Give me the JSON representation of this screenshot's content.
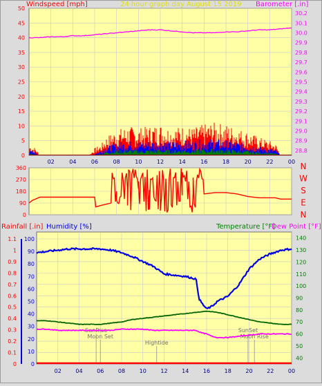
{
  "colors": {
    "plot_bg": "#ffffa6",
    "frame_bg": "#dcdcdc",
    "grid": "#c8c8c8",
    "wind": "#ff0000",
    "gust": "#0000ff",
    "avg": "#008000",
    "baro": "#ff00ff",
    "dir": "#ff0000",
    "humidity": "#0000e0",
    "temperature": "#006400",
    "dewpoint": "#ff00ff",
    "rainfall": "#ff0000",
    "axis_left": "#ff0000",
    "axis_right": "#ff00ff",
    "title": "#e0e000",
    "compass": "#ff0000",
    "temp_axis": "#008000",
    "hum_axis": "#0000e0"
  },
  "chart_data": [
    {
      "id": "wind",
      "type": "area",
      "title": "24 hour graph day   August 15 2019",
      "ylabel": "Windspeed [mph]",
      "y2label": "Barometer [.in]",
      "ylim": [
        0,
        50
      ],
      "y2lim": [
        28.75,
        30.25
      ],
      "x_ticks": [
        "02",
        "04",
        "06",
        "08",
        "10",
        "12",
        "14",
        "16",
        "18",
        "20",
        "22",
        "00"
      ],
      "y_ticks": [
        0,
        5,
        10,
        15,
        20,
        25,
        30,
        35,
        40,
        45,
        50
      ],
      "y2_ticks": [
        28.8,
        28.9,
        29.0,
        29.1,
        29.2,
        29.3,
        29.4,
        29.5,
        29.6,
        29.7,
        29.8,
        29.9,
        30.0,
        30.1,
        30.2
      ],
      "barometer": {
        "x": [
          0,
          1,
          2,
          3,
          4,
          5,
          6,
          7,
          8,
          9,
          10,
          11,
          12,
          13,
          14,
          15,
          16,
          17,
          18,
          19,
          20,
          21,
          22,
          23,
          24
        ],
        "values": [
          29.95,
          29.95,
          29.96,
          29.96,
          29.97,
          29.97,
          29.98,
          29.99,
          30.0,
          30.01,
          30.02,
          30.03,
          30.03,
          30.02,
          30.01,
          30.0,
          30.0,
          30.0,
          30.01,
          30.01,
          30.02,
          30.03,
          30.03,
          30.04,
          30.05
        ]
      },
      "wind_envelope": {
        "x": [
          0,
          0.6,
          0.9,
          1.0,
          5.5,
          6.0,
          6.6,
          7.0,
          7.5,
          8.0,
          9.0,
          10.0,
          11.0,
          12.0,
          13.0,
          14.0,
          15.0,
          16.0,
          17.0,
          18.0,
          19.0,
          20.0,
          21.0,
          22.0,
          22.6,
          23.0,
          24.0
        ],
        "gust": [
          3,
          2,
          0.5,
          0,
          0,
          2,
          3,
          5,
          6,
          7,
          8,
          7.5,
          8,
          8.5,
          7.5,
          8,
          7.5,
          8.5,
          9,
          8.5,
          7.5,
          6.5,
          5,
          4,
          3,
          0,
          0
        ],
        "speed": [
          1.5,
          1,
          0,
          0,
          0,
          0.5,
          1.5,
          2.5,
          3,
          3.5,
          4,
          3.8,
          4,
          4.2,
          3.8,
          4.2,
          4,
          4.5,
          4.6,
          4.2,
          3.8,
          3.2,
          2.5,
          2,
          1.5,
          0,
          0
        ],
        "average": [
          0.5,
          0.3,
          0,
          0,
          0,
          0.2,
          0.5,
          1,
          1.2,
          1.5,
          1.6,
          1.5,
          1.6,
          1.7,
          1.5,
          1.7,
          1.6,
          1.8,
          1.9,
          1.7,
          1.5,
          1.3,
          1,
          0.8,
          0.5,
          0,
          0
        ]
      }
    },
    {
      "id": "direction",
      "type": "line",
      "ylim": [
        0,
        360
      ],
      "y_ticks": [
        0,
        90,
        180,
        270,
        360
      ],
      "compass_labels": [
        "N",
        "W",
        "S",
        "E",
        "N"
      ],
      "x": [
        0,
        0.3,
        1,
        2,
        3,
        4,
        5,
        6,
        6.1,
        6.5,
        7,
        7.5,
        8,
        9,
        10,
        11,
        12,
        13,
        14,
        15,
        16,
        17,
        18,
        19,
        20,
        21,
        22,
        22.5,
        23,
        24
      ],
      "values": [
        90,
        110,
        135,
        135,
        135,
        135,
        135,
        135,
        60,
        70,
        80,
        90,
        180,
        200,
        200,
        190,
        180,
        170,
        150,
        170,
        160,
        170,
        170,
        160,
        140,
        130,
        130,
        130,
        120,
        120
      ],
      "noisy_from": 7.5,
      "noisy_to": 15.5
    },
    {
      "id": "atmos",
      "type": "line",
      "ylabel_rain": "Rainfall [.in]",
      "ylabel_humidity": "Humidity [%]",
      "ylabel_temp": "Temperature [°F]",
      "ylabel_dew": "Dew Point [°F]",
      "rain_ticks": [
        0,
        0.1,
        0.2,
        0.3,
        0.4,
        0.5,
        0.6,
        0.7,
        0.8,
        0.9,
        1,
        1.1
      ],
      "hum_ticks": [
        0,
        10,
        20,
        30,
        40,
        50,
        60,
        70,
        80,
        90,
        100
      ],
      "temp_ticks": [
        40,
        50,
        60,
        70,
        80,
        90,
        100,
        110,
        120,
        130,
        140
      ],
      "temp_ylim": [
        35,
        145
      ],
      "humidity": {
        "x": [
          0,
          1,
          2,
          3,
          4,
          5,
          6,
          7,
          8,
          9,
          10,
          11,
          12,
          13,
          14,
          15,
          15.3,
          15.6,
          16,
          16.5,
          17,
          18,
          19,
          20,
          21,
          22,
          23,
          24
        ],
        "values": [
          89,
          90,
          91,
          92,
          92,
          92,
          92,
          91,
          89,
          86,
          82,
          78,
          72,
          71,
          70,
          68,
          52,
          48,
          44,
          46,
          50,
          54,
          63,
          76,
          84,
          88,
          91,
          92
        ]
      },
      "temperature": {
        "x": [
          0,
          1,
          2,
          3,
          4,
          5,
          6,
          7,
          8,
          9,
          10,
          11,
          12,
          13,
          14,
          15,
          16,
          17,
          18,
          19,
          20,
          21,
          22,
          23,
          24
        ],
        "values": [
          71,
          71,
          70,
          69,
          68,
          68,
          68,
          69,
          70,
          72,
          73,
          74,
          75,
          76,
          77,
          78,
          79,
          78,
          76,
          74,
          72,
          70,
          69,
          68,
          68
        ]
      },
      "dewpoint": {
        "x": [
          0,
          1,
          2,
          3,
          4,
          5,
          6,
          7,
          8,
          9,
          10,
          11,
          12,
          13,
          14,
          15,
          15.5,
          16,
          16.5,
          17,
          18,
          19,
          20,
          21,
          22,
          23,
          24
        ],
        "values": [
          64,
          64,
          63,
          63,
          63,
          63,
          63,
          63,
          64,
          64,
          64,
          63,
          63,
          63,
          63,
          63,
          61,
          60,
          58,
          57,
          57,
          58,
          59,
          60,
          60,
          60,
          60
        ]
      },
      "rainfall": 0,
      "events": [
        {
          "label": "SunRise",
          "hour": 5.6,
          "row": 1
        },
        {
          "label": "Moon Set",
          "hour": 6.0,
          "row": 2
        },
        {
          "label": "Hightide",
          "hour": 11.3,
          "row": 3
        },
        {
          "label": "SunSet",
          "hour": 19.9,
          "row": 1
        },
        {
          "label": "Moon Rise",
          "hour": 20.5,
          "row": 2
        }
      ],
      "x_ticks": [
        "02",
        "04",
        "06",
        "08",
        "10",
        "12",
        "14",
        "16",
        "18",
        "20",
        "22",
        "00"
      ]
    }
  ]
}
